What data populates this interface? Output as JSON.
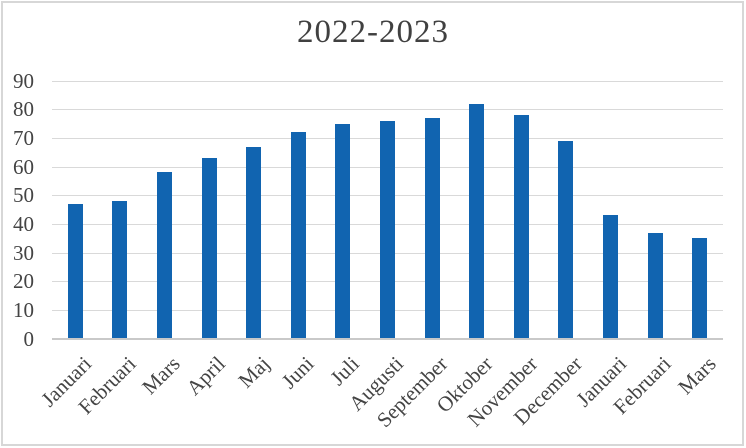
{
  "chart_data": {
    "type": "bar",
    "title": "2022-2023",
    "categories": [
      "Januari",
      "Februari",
      "Mars",
      "April",
      "Maj",
      "Juni",
      "Juli",
      "Augusti",
      "September",
      "Oktober",
      "November",
      "December",
      "Januari",
      "Februari",
      "Mars"
    ],
    "values": [
      47,
      48,
      58,
      63,
      67,
      72,
      75,
      76,
      77,
      82,
      78,
      69,
      43,
      37,
      35
    ],
    "xlabel": "",
    "ylabel": "",
    "ylim": [
      0,
      90
    ],
    "yticks": [
      0,
      10,
      20,
      30,
      40,
      50,
      60,
      70,
      80,
      90
    ],
    "grid": true,
    "legend_position": "none",
    "bar_label_rotation_deg": 45,
    "colors": {
      "bar": "#1164b0",
      "gridline": "#d9d9d9",
      "axis_line": "#c9c9c9",
      "tick_text": "#444444",
      "title_text": "#404040",
      "frame_border": "#d7d7d7",
      "background": "#ffffff"
    }
  }
}
